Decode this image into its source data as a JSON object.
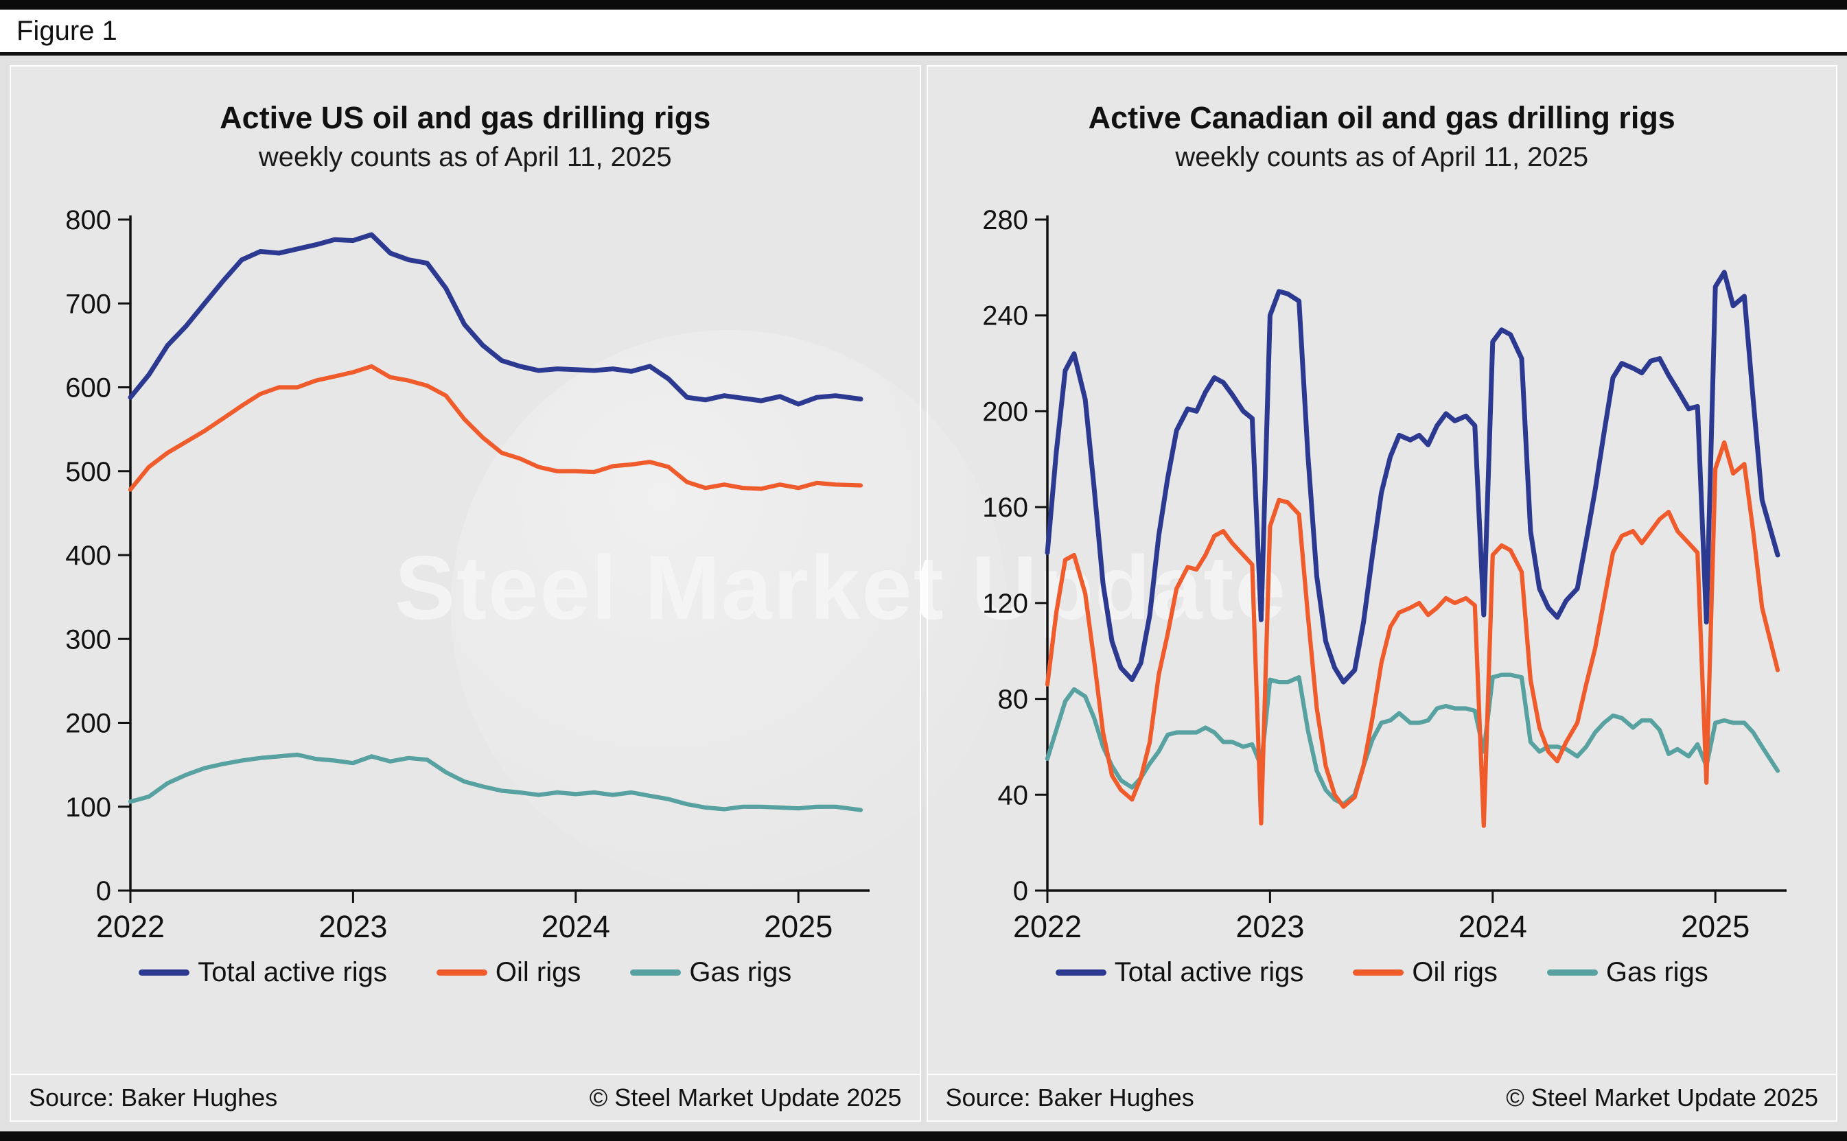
{
  "figure_label": "Figure 1",
  "watermark": "Steel Market Update",
  "colors": {
    "total": "#2b3990",
    "oil": "#f05b2c",
    "gas": "#58a1a1"
  },
  "panels": [
    {
      "title": "Active US oil and gas drilling rigs",
      "subtitle": "weekly counts as of April 11, 2025",
      "source": "Source: Baker Hughes",
      "copyright": "© Steel Market Update 2025"
    },
    {
      "title": "Active Canadian oil and gas drilling rigs",
      "subtitle": "weekly counts as of April 11, 2025",
      "source": "Source: Baker Hughes",
      "copyright": "© Steel Market Update 2025"
    }
  ],
  "chart_data": [
    {
      "type": "line",
      "title": "Active US oil and gas drilling rigs",
      "subtitle": "weekly counts as of April 11, 2025",
      "xlabel": "",
      "ylabel": "",
      "grid": false,
      "legend_position": "bottom",
      "xlim": [
        2022,
        2025.32
      ],
      "ylim": [
        0,
        800
      ],
      "xticks": [
        2022,
        2023,
        2024,
        2025
      ],
      "yticks": [
        0,
        100,
        200,
        300,
        400,
        500,
        600,
        700,
        800
      ],
      "x": [
        2022.0,
        2022.083,
        2022.167,
        2022.25,
        2022.333,
        2022.417,
        2022.5,
        2022.583,
        2022.667,
        2022.75,
        2022.833,
        2022.917,
        2023.0,
        2023.083,
        2023.167,
        2023.25,
        2023.333,
        2023.417,
        2023.5,
        2023.583,
        2023.667,
        2023.75,
        2023.833,
        2023.917,
        2024.0,
        2024.083,
        2024.167,
        2024.25,
        2024.333,
        2024.417,
        2024.5,
        2024.583,
        2024.667,
        2024.75,
        2024.833,
        2024.917,
        2025.0,
        2025.083,
        2025.167,
        2025.28
      ],
      "series": [
        {
          "name": "Total active rigs",
          "color": "#2b3990",
          "values": [
            588,
            615,
            650,
            673,
            700,
            727,
            752,
            762,
            760,
            765,
            770,
            776,
            775,
            782,
            760,
            752,
            748,
            718,
            675,
            650,
            632,
            625,
            620,
            622,
            621,
            620,
            622,
            619,
            625,
            610,
            588,
            585,
            590,
            587,
            584,
            589,
            580,
            588,
            590,
            586
          ]
        },
        {
          "name": "Oil rigs",
          "color": "#f05b2c",
          "values": [
            478,
            505,
            522,
            535,
            548,
            563,
            578,
            592,
            600,
            600,
            608,
            613,
            618,
            625,
            612,
            608,
            602,
            590,
            562,
            540,
            522,
            515,
            505,
            500,
            500,
            499,
            506,
            508,
            511,
            505,
            487,
            480,
            484,
            480,
            479,
            484,
            480,
            486,
            484,
            483
          ]
        },
        {
          "name": "Gas rigs",
          "color": "#58a1a1",
          "values": [
            106,
            112,
            128,
            138,
            146,
            151,
            155,
            158,
            160,
            162,
            157,
            155,
            152,
            160,
            154,
            158,
            156,
            141,
            130,
            124,
            119,
            117,
            114,
            117,
            115,
            117,
            114,
            117,
            113,
            109,
            103,
            99,
            97,
            100,
            100,
            99,
            98,
            100,
            100,
            96
          ]
        }
      ]
    },
    {
      "type": "line",
      "title": "Active Canadian oil and gas drilling rigs",
      "subtitle": "weekly counts as of April 11, 2025",
      "xlabel": "",
      "ylabel": "",
      "grid": false,
      "legend_position": "bottom",
      "xlim": [
        2022,
        2025.32
      ],
      "ylim": [
        0,
        280
      ],
      "xticks": [
        2022,
        2023,
        2024,
        2025
      ],
      "yticks": [
        0,
        40,
        80,
        120,
        160,
        200,
        240,
        280
      ],
      "x": [
        2022.0,
        2022.04,
        2022.08,
        2022.12,
        2022.17,
        2022.21,
        2022.25,
        2022.29,
        2022.33,
        2022.38,
        2022.42,
        2022.46,
        2022.5,
        2022.54,
        2022.58,
        2022.63,
        2022.67,
        2022.71,
        2022.75,
        2022.79,
        2022.83,
        2022.88,
        2022.92,
        2022.96,
        2023.0,
        2023.04,
        2023.08,
        2023.13,
        2023.17,
        2023.21,
        2023.25,
        2023.29,
        2023.33,
        2023.38,
        2023.42,
        2023.46,
        2023.5,
        2023.54,
        2023.58,
        2023.63,
        2023.67,
        2023.71,
        2023.75,
        2023.79,
        2023.83,
        2023.88,
        2023.92,
        2023.96,
        2024.0,
        2024.04,
        2024.08,
        2024.13,
        2024.17,
        2024.21,
        2024.25,
        2024.29,
        2024.33,
        2024.38,
        2024.42,
        2024.46,
        2024.5,
        2024.54,
        2024.58,
        2024.63,
        2024.67,
        2024.71,
        2024.75,
        2024.79,
        2024.83,
        2024.88,
        2024.92,
        2024.96,
        2025.0,
        2025.04,
        2025.08,
        2025.13,
        2025.17,
        2025.21,
        2025.28
      ],
      "series": [
        {
          "name": "Total active rigs",
          "color": "#2b3990",
          "values": [
            141,
            183,
            217,
            224,
            205,
            168,
            128,
            104,
            93,
            88,
            95,
            115,
            148,
            172,
            192,
            201,
            200,
            208,
            214,
            212,
            207,
            200,
            197,
            113,
            240,
            250,
            249,
            246,
            182,
            131,
            104,
            93,
            87,
            92,
            112,
            140,
            166,
            181,
            190,
            188,
            190,
            186,
            194,
            199,
            196,
            198,
            194,
            115,
            229,
            234,
            232,
            222,
            150,
            126,
            118,
            114,
            121,
            126,
            146,
            167,
            191,
            214,
            220,
            218,
            216,
            221,
            222,
            215,
            209,
            201,
            202,
            112,
            252,
            258,
            244,
            248,
            205,
            163,
            140
          ]
        },
        {
          "name": "Oil rigs",
          "color": "#f05b2c",
          "values": [
            86,
            116,
            138,
            140,
            124,
            96,
            66,
            48,
            42,
            38,
            47,
            62,
            90,
            107,
            126,
            135,
            134,
            140,
            148,
            150,
            145,
            140,
            136,
            28,
            152,
            163,
            162,
            157,
            115,
            76,
            52,
            40,
            35,
            39,
            52,
            72,
            95,
            110,
            116,
            118,
            120,
            115,
            118,
            122,
            120,
            122,
            119,
            27,
            140,
            144,
            142,
            133,
            88,
            68,
            58,
            54,
            62,
            70,
            86,
            101,
            121,
            141,
            148,
            150,
            145,
            150,
            155,
            158,
            150,
            145,
            141,
            45,
            176,
            187,
            174,
            178,
            150,
            118,
            92
          ]
        },
        {
          "name": "Gas rigs",
          "color": "#58a1a1",
          "values": [
            55,
            67,
            79,
            84,
            81,
            72,
            60,
            52,
            46,
            43,
            47,
            53,
            58,
            65,
            66,
            66,
            66,
            68,
            66,
            62,
            62,
            60,
            61,
            52,
            88,
            87,
            87,
            89,
            67,
            50,
            42,
            38,
            36,
            40,
            52,
            63,
            70,
            71,
            74,
            70,
            70,
            71,
            76,
            77,
            76,
            76,
            75,
            58,
            89,
            90,
            90,
            89,
            62,
            58,
            60,
            60,
            59,
            56,
            60,
            66,
            70,
            73,
            72,
            68,
            71,
            71,
            67,
            57,
            59,
            56,
            61,
            52,
            70,
            71,
            70,
            70,
            66,
            60,
            50
          ]
        }
      ]
    }
  ]
}
